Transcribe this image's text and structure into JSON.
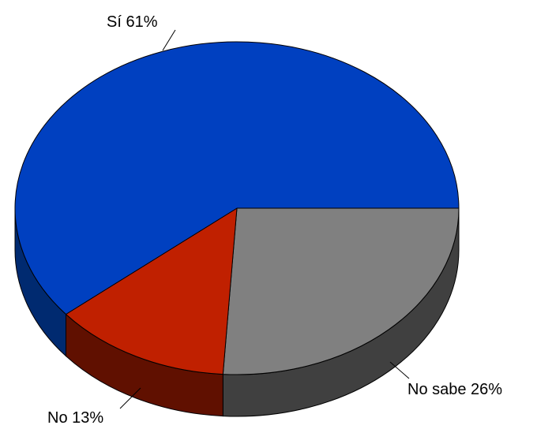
{
  "chart_data": {
    "type": "pie",
    "style": "3d",
    "slices": [
      {
        "label": "Sí",
        "value": 61,
        "value_text": "61%",
        "color": "#0040C0",
        "side_color": "#002A70"
      },
      {
        "label": "No sabe",
        "value": 26,
        "value_text": "26%",
        "color": "#808080",
        "side_color": "#404040"
      },
      {
        "label": "No",
        "value": 13,
        "value_text": "13%",
        "color": "#C02000",
        "side_color": "#601000"
      }
    ],
    "legend": "none",
    "data_labels": "outside-with-leader-lines"
  }
}
